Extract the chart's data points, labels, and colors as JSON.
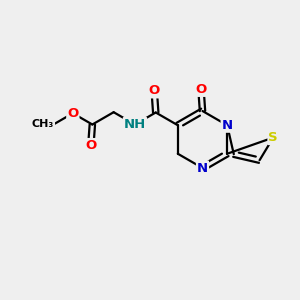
{
  "bg_color": "#efefef",
  "bond_color": "#000000",
  "bond_width": 1.6,
  "atom_colors": {
    "O": "#ff0000",
    "N": "#0000cc",
    "S": "#cccc00",
    "NH": "#008080",
    "C": "#000000"
  },
  "font_size": 9.5,
  "title": ""
}
